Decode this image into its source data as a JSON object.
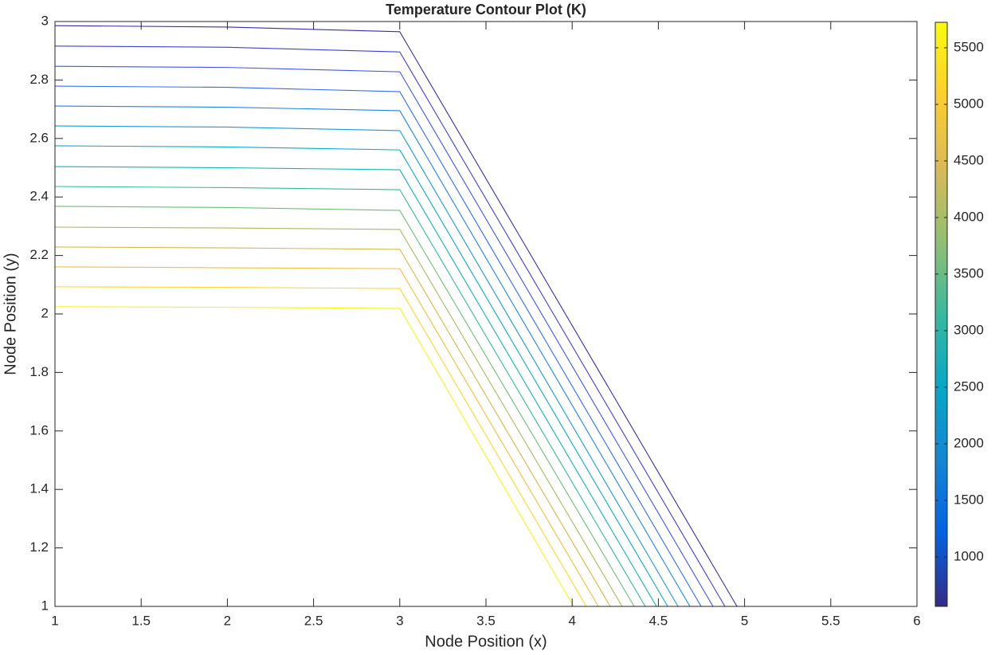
{
  "chart_data": {
    "type": "contour",
    "title": "Temperature Contour Plot (K)",
    "x_label": "Node Position (x)",
    "y_label": "Node Position (y)",
    "xlim": [
      1,
      6
    ],
    "ylim": [
      1,
      3
    ],
    "xticks": [
      1,
      1.5,
      2,
      2.5,
      3,
      3.5,
      4,
      4.5,
      5,
      5.5,
      6
    ],
    "yticks": [
      1,
      1.2,
      1.4,
      1.6,
      1.8,
      2,
      2.2,
      2.4,
      2.6,
      2.8,
      3
    ],
    "grid": false,
    "series": [
      {
        "color": "#3a2eaa",
        "x": [
          1,
          2,
          3,
          4.956
        ],
        "values": [
          2.986,
          2.981,
          2.965,
          1
        ]
      },
      {
        "color": "#4140d8",
        "x": [
          1,
          2,
          3,
          4.886
        ],
        "values": [
          2.916,
          2.912,
          2.896,
          1
        ]
      },
      {
        "color": "#3f55ee",
        "x": [
          1,
          2,
          3,
          4.817
        ],
        "values": [
          2.847,
          2.843,
          2.828,
          1
        ]
      },
      {
        "color": "#2f6cf7",
        "x": [
          1,
          2,
          3,
          4.748
        ],
        "values": [
          2.779,
          2.775,
          2.76,
          1
        ]
      },
      {
        "color": "#1f85ea",
        "x": [
          1,
          2,
          3,
          4.683
        ],
        "values": [
          2.711,
          2.707,
          2.695,
          1
        ]
      },
      {
        "color": "#1a9ad9",
        "x": [
          1,
          2,
          3,
          4.614
        ],
        "values": [
          2.643,
          2.639,
          2.627,
          1
        ]
      },
      {
        "color": "#0aabc9",
        "x": [
          1,
          2,
          3,
          4.554
        ],
        "values": [
          2.575,
          2.571,
          2.561,
          1
        ]
      },
      {
        "color": "#12b5b0",
        "x": [
          1,
          2,
          3,
          4.489
        ],
        "values": [
          2.504,
          2.5,
          2.493,
          1
        ]
      },
      {
        "color": "#35bc97",
        "x": [
          1,
          2,
          3,
          4.424
        ],
        "values": [
          2.436,
          2.432,
          2.425,
          1
        ]
      },
      {
        "color": "#6cbf78",
        "x": [
          1,
          2,
          3,
          4.36
        ],
        "values": [
          2.368,
          2.364,
          2.354,
          1
        ]
      },
      {
        "color": "#a6bd5c",
        "x": [
          1,
          2,
          3,
          4.29
        ],
        "values": [
          2.297,
          2.294,
          2.289,
          1
        ]
      },
      {
        "color": "#d2ba46",
        "x": [
          1,
          2,
          3,
          4.221
        ],
        "values": [
          2.229,
          2.226,
          2.221,
          1
        ]
      },
      {
        "color": "#f3bf3b",
        "x": [
          1,
          2,
          3,
          4.152
        ],
        "values": [
          2.161,
          2.158,
          2.155,
          1
        ]
      },
      {
        "color": "#fad92a",
        "x": [
          1,
          2,
          3,
          4.082
        ],
        "values": [
          2.093,
          2.091,
          2.087,
          1
        ]
      },
      {
        "color": "#f5f71a",
        "x": [
          1,
          2,
          3,
          4.008
        ],
        "values": [
          2.025,
          2.023,
          2.019,
          1
        ]
      }
    ],
    "colorbar": {
      "clim": [
        563,
        5725
      ],
      "ticks": [
        1000,
        1500,
        2000,
        2500,
        3000,
        3500,
        4000,
        4500,
        5000,
        5500
      ],
      "colormap": [
        "#352a87",
        "#0363e1",
        "#1485d4",
        "#06a7c6",
        "#38b99e",
        "#92bf73",
        "#d9ba56",
        "#fcce2e",
        "#f9fb0e"
      ]
    }
  }
}
